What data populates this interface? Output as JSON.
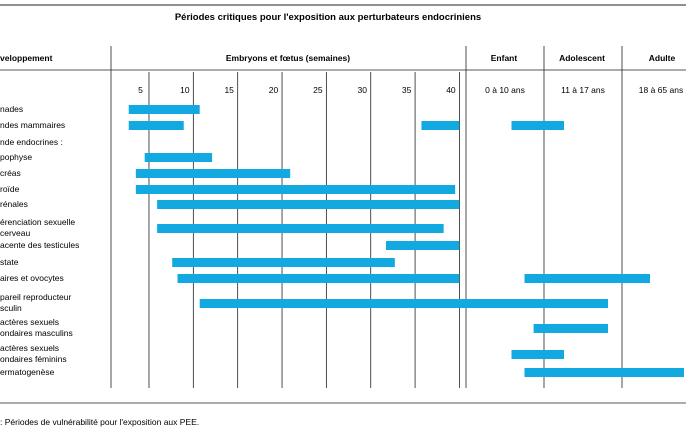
{
  "chart_data": {
    "type": "gantt",
    "title": "Périodes critiques pour l'exposition aux perturbateurs endocriniens",
    "row_header": "veloppement",
    "column_headers": [
      {
        "label": "Embryons et fœtus (semaines)"
      },
      {
        "label": "Enfant"
      },
      {
        "label": "Adolescent"
      },
      {
        "label": "Adulte"
      }
    ],
    "ticks": [
      {
        "label": "5",
        "value": 5
      },
      {
        "label": "10",
        "value": 10
      },
      {
        "label": "15",
        "value": 15
      },
      {
        "label": "20",
        "value": 20
      },
      {
        "label": "25",
        "value": 25
      },
      {
        "label": "30",
        "value": 30
      },
      {
        "label": "35",
        "value": 35
      },
      {
        "label": "40",
        "value": 40
      },
      {
        "label": "0 à 10 ans",
        "value": 42
      },
      {
        "label": "11 à 17 ans",
        "value": 50
      },
      {
        "label": "18 à 65 ans",
        "value": 56
      }
    ],
    "scale_note": "Weeks 1–40 map linearly; 40–45 = Enfant, 45–51 = Adolescent, 51–58 = Adulte",
    "bar_color": "#12a9e0",
    "rows": [
      {
        "label_lines": [
          "nades"
        ],
        "bars": [
          [
            3,
            11
          ]
        ]
      },
      {
        "label_lines": [
          "ndes mammaires"
        ],
        "bars": [
          [
            3,
            9.2
          ],
          [
            36,
            41.2
          ],
          [
            48.5,
            52
          ]
        ]
      },
      {
        "label_lines": [
          "nde endocrines :"
        ],
        "bars": []
      },
      {
        "label_lines": [
          "pophyse"
        ],
        "bars": [
          [
            4.8,
            12.4
          ]
        ]
      },
      {
        "label_lines": [
          "créas"
        ],
        "bars": [
          [
            3.8,
            21.2
          ]
        ]
      },
      {
        "label_lines": [
          "roïde"
        ],
        "bars": [
          [
            3.8,
            39.8
          ]
        ]
      },
      {
        "label_lines": [
          "rénales"
        ],
        "bars": [
          [
            6.2,
            41.2
          ]
        ]
      },
      {
        "label_lines": [
          "érenciation sexuelle",
          "cerveau"
        ],
        "bars": [
          [
            6.2,
            38.5
          ]
        ]
      },
      {
        "label_lines": [
          "acente des testicules"
        ],
        "bars": [
          [
            32,
            41.2
          ]
        ]
      },
      {
        "label_lines": [
          "state"
        ],
        "bars": [
          [
            7.9,
            33
          ]
        ]
      },
      {
        "label_lines": [
          "aires et ovocytes"
        ],
        "bars": [
          [
            8.5,
            41.2
          ],
          [
            49.5,
            56.3
          ]
        ]
      },
      {
        "label_lines": [
          "pareil reproducteur",
          "sculin"
        ],
        "bars": [
          [
            11,
            54.2
          ]
        ]
      },
      {
        "label_lines": [
          "actères sexuels",
          "ondaires masculins"
        ],
        "bars": [
          [
            50.2,
            54.2
          ]
        ]
      },
      {
        "label_lines": [
          "actères sexuels",
          "ondaires féminins"
        ],
        "bars": [
          [
            48.5,
            52
          ]
        ]
      },
      {
        "label_lines": [
          "ermatogenèse"
        ],
        "bars": [
          [
            49.5,
            58
          ]
        ]
      }
    ]
  },
  "footnote": ": Périodes de vulnérabilité pour l'exposition aux PEE."
}
